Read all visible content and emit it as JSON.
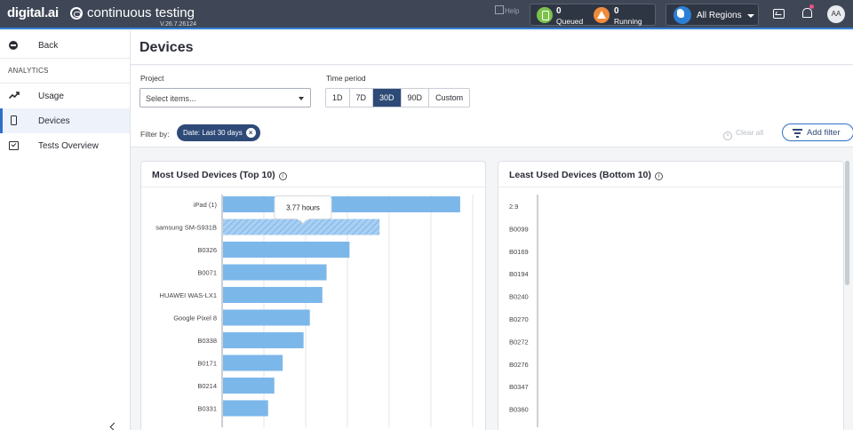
{
  "header": {
    "brand": "digital.ai",
    "app_title": "continuous testing",
    "version": "V.26.7.26124",
    "help_alt": "Help",
    "queued": {
      "count": "0",
      "label": "Queued"
    },
    "running": {
      "count": "0",
      "label": "Running"
    },
    "region": "All Regions",
    "avatar": "AA"
  },
  "sidebar": {
    "back": "Back",
    "section": "ANALYTICS",
    "items": [
      {
        "label": "Usage",
        "icon": "trend-icon"
      },
      {
        "label": "Devices",
        "icon": "mobile-device-icon",
        "active": true
      },
      {
        "label": "Tests Overview",
        "icon": "checkbox-icon"
      }
    ]
  },
  "page": {
    "title": "Devices",
    "project_label": "Project",
    "project_placeholder": "Select items...",
    "period_label": "Time period",
    "periods": [
      "1D",
      "7D",
      "30D",
      "90D",
      "Custom"
    ],
    "active_period": "30D",
    "filter_by": "Filter by:",
    "chip": "Date: Last 30 days",
    "clear_all": "Clear all",
    "add_filter": "Add filter"
  },
  "most_used": {
    "title": "Most Used Devices (Top 10)",
    "tooltip": "3.77 hours"
  },
  "least_used": {
    "title": "Least Used Devices (Bottom 10)"
  },
  "chart_data": [
    {
      "type": "bar",
      "orientation": "horizontal",
      "title": "Most Used Devices (Top 10)",
      "categories": [
        "iPad (1)",
        "samsung SM-S931B",
        "B0326",
        "B0071",
        "HUAWEI WAS-LX1",
        "Google Pixel 8",
        "B0338",
        "B0171",
        "B0214",
        "B0331"
      ],
      "values": [
        5.7,
        3.77,
        3.05,
        2.5,
        2.4,
        2.1,
        1.95,
        1.45,
        1.25,
        1.1
      ],
      "unit": "hours",
      "highlighted": "samsung SM-S931B",
      "color": "#7cb7ea",
      "xlim": [
        0,
        6
      ],
      "grid": true
    },
    {
      "type": "bar",
      "orientation": "horizontal",
      "title": "Least Used Devices (Bottom 10)",
      "categories": [
        "2.9",
        "B0099",
        "B0169",
        "B0194",
        "B0240",
        "B0270",
        "B0272",
        "B0276",
        "B0347",
        "B0360"
      ],
      "values": [
        0,
        0,
        0,
        0,
        0,
        0,
        0,
        0,
        0,
        0
      ],
      "color": "#7cb7ea"
    }
  ]
}
